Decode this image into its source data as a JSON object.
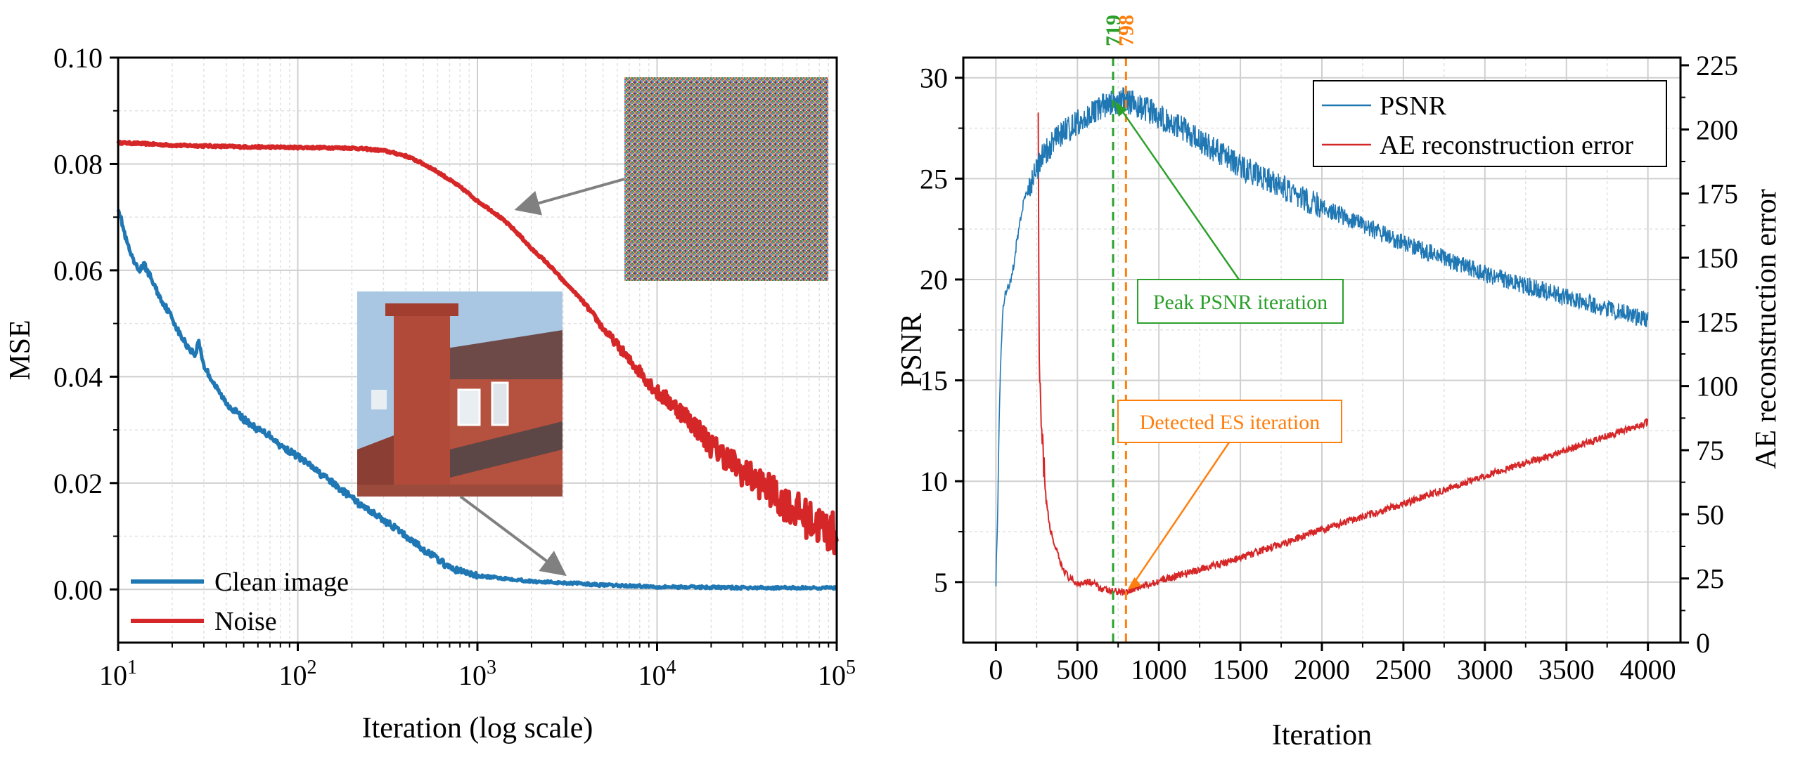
{
  "chart_data": [
    {
      "type": "line",
      "xlabel": "Iteration (log scale)",
      "ylabel": "MSE",
      "xscale": "log",
      "xlim": [
        10,
        100000
      ],
      "ylim": [
        -0.01,
        0.1
      ],
      "grid": true,
      "legend_position": "bottom-left",
      "x_ticks": [
        {
          "base": "10",
          "exp": "1"
        },
        {
          "base": "10",
          "exp": "2"
        },
        {
          "base": "10",
          "exp": "3"
        },
        {
          "base": "10",
          "exp": "4"
        },
        {
          "base": "10",
          "exp": "5"
        }
      ],
      "y_ticks": [
        "0.00",
        "0.02",
        "0.04",
        "0.06",
        "0.08",
        "0.10"
      ],
      "y_tick_values": [
        0,
        0.02,
        0.04,
        0.06,
        0.08,
        0.1
      ],
      "series": [
        {
          "name": "Clean image",
          "color": "#1f77b4",
          "points": [
            [
              10,
              0.072
            ],
            [
              11,
              0.066
            ],
            [
              12,
              0.062
            ],
            [
              13,
              0.06
            ],
            [
              14,
              0.061
            ],
            [
              15,
              0.059
            ],
            [
              17,
              0.055
            ],
            [
              20,
              0.051
            ],
            [
              22,
              0.048
            ],
            [
              24,
              0.046
            ],
            [
              27,
              0.044
            ],
            [
              28,
              0.047
            ],
            [
              30,
              0.042
            ],
            [
              35,
              0.038
            ],
            [
              40,
              0.035
            ],
            [
              50,
              0.032
            ],
            [
              60,
              0.03
            ],
            [
              70,
              0.029
            ],
            [
              80,
              0.027
            ],
            [
              100,
              0.025
            ],
            [
              130,
              0.022
            ],
            [
              170,
              0.019
            ],
            [
              220,
              0.016
            ],
            [
              300,
              0.013
            ],
            [
              400,
              0.01
            ],
            [
              500,
              0.0075
            ],
            [
              700,
              0.004
            ],
            [
              1000,
              0.0025
            ],
            [
              2000,
              0.0015
            ],
            [
              5000,
              0.0008
            ],
            [
              10000,
              0.0005
            ],
            [
              30000,
              0.0003
            ],
            [
              100000,
              0.0003
            ]
          ]
        },
        {
          "name": "Noise",
          "color": "#d62728",
          "points": [
            [
              10,
              0.084
            ],
            [
              20,
              0.0835
            ],
            [
              50,
              0.0832
            ],
            [
              100,
              0.0831
            ],
            [
              200,
              0.083
            ],
            [
              300,
              0.0825
            ],
            [
              400,
              0.0815
            ],
            [
              500,
              0.08
            ],
            [
              700,
              0.077
            ],
            [
              1000,
              0.073
            ],
            [
              2000,
              0.064
            ],
            [
              3000,
              0.058
            ],
            [
              5000,
              0.049
            ],
            [
              7000,
              0.043
            ],
            [
              10000,
              0.037
            ],
            [
              20000,
              0.027
            ],
            [
              30000,
              0.022
            ],
            [
              50000,
              0.0165
            ],
            [
              70000,
              0.013
            ],
            [
              100000,
              0.01
            ]
          ]
        }
      ],
      "insets": [
        {
          "name": "noise-image",
          "points_to": "Noise"
        },
        {
          "name": "house-image",
          "points_to": "Clean image"
        }
      ]
    },
    {
      "type": "line",
      "xlabel": "Iteration",
      "ylabel": "PSNR",
      "y2label": "AE reconstruction error",
      "xlim": [
        -200,
        4200
      ],
      "ylim": [
        2,
        31
      ],
      "y2lim": [
        0,
        228
      ],
      "grid": true,
      "legend_position": "top-right",
      "x_ticks": [
        "0",
        "500",
        "1000",
        "1500",
        "2000",
        "2500",
        "3000",
        "3500",
        "4000"
      ],
      "x_tick_values": [
        0,
        500,
        1000,
        1500,
        2000,
        2500,
        3000,
        3500,
        4000
      ],
      "y_ticks": [
        "5",
        "10",
        "15",
        "20",
        "25",
        "30"
      ],
      "y_tick_values": [
        5,
        10,
        15,
        20,
        25,
        30
      ],
      "y2_ticks": [
        "0",
        "25",
        "50",
        "75",
        "100",
        "125",
        "150",
        "175",
        "200",
        "225"
      ],
      "y2_tick_values": [
        0,
        25,
        50,
        75,
        100,
        125,
        150,
        175,
        200,
        225
      ],
      "series": [
        {
          "name": "PSNR",
          "axis": "left",
          "color": "#1f77b4",
          "points": [
            [
              0,
              5
            ],
            [
              10,
              8
            ],
            [
              20,
              13
            ],
            [
              30,
              16
            ],
            [
              40,
              18
            ],
            [
              50,
              19
            ],
            [
              60,
              19.5
            ],
            [
              80,
              19.7
            ],
            [
              100,
              20.2
            ],
            [
              130,
              22
            ],
            [
              160,
              23.5
            ],
            [
              200,
              24.5
            ],
            [
              250,
              25.5
            ],
            [
              300,
              26.3
            ],
            [
              400,
              27.2
            ],
            [
              500,
              27.8
            ],
            [
              600,
              28.3
            ],
            [
              700,
              28.8
            ],
            [
              800,
              28.9
            ],
            [
              900,
              28.5
            ],
            [
              1000,
              28.1
            ],
            [
              1200,
              27.2
            ],
            [
              1500,
              25.6
            ],
            [
              2000,
              23.6
            ],
            [
              2500,
              21.8
            ],
            [
              3000,
              20.3
            ],
            [
              3500,
              19.1
            ],
            [
              4000,
              18
            ]
          ]
        },
        {
          "name": "AE reconstruction error",
          "axis": "right",
          "color": "#d62728",
          "points": [
            [
              260,
              215
            ],
            [
              262,
              150
            ],
            [
              265,
              120
            ],
            [
              270,
              95
            ],
            [
              280,
              80
            ],
            [
              300,
              60
            ],
            [
              330,
              45
            ],
            [
              360,
              38
            ],
            [
              400,
              30
            ],
            [
              450,
              25
            ],
            [
              500,
              23
            ],
            [
              550,
              24
            ],
            [
              600,
              23
            ],
            [
              650,
              21
            ],
            [
              700,
              20
            ],
            [
              750,
              20
            ],
            [
              798,
              20
            ],
            [
              900,
              22
            ],
            [
              1000,
              24
            ],
            [
              1500,
              33
            ],
            [
              2000,
              44
            ],
            [
              2500,
              54
            ],
            [
              3000,
              65
            ],
            [
              3500,
              75
            ],
            [
              4000,
              86
            ]
          ]
        }
      ],
      "vlines": [
        {
          "x": 719,
          "label": "719",
          "color": "#2ca02c"
        },
        {
          "x": 798,
          "label": "798",
          "color": "#ff7f0e"
        }
      ],
      "annotations": [
        {
          "text": "Peak PSNR iteration",
          "color": "#2ca02c",
          "target_x": 719
        },
        {
          "text": "Detected ES iteration",
          "color": "#ff7f0e",
          "target_x": 798
        }
      ]
    }
  ]
}
